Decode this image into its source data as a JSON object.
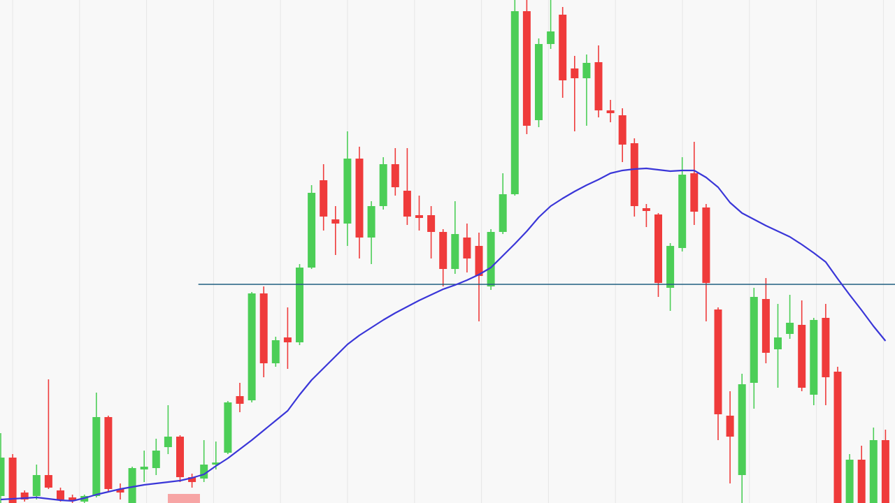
{
  "chart_data": {
    "type": "candlestick",
    "open": [
      10,
      65,
      15,
      10,
      40,
      18,
      8,
      2,
      10,
      123,
      20,
      0,
      48,
      50,
      80,
      95,
      37,
      35,
      55,
      72,
      153,
      147,
      300,
      200,
      237,
      230,
      337,
      462,
      406,
      400,
      493,
      380,
      425,
      485,
      447,
      412,
      412,
      388,
      335,
      380,
      368,
      310,
      388,
      442,
      704,
      548,
      657,
      699,
      622,
      608,
      631,
      562,
      555,
      515,
      422,
      413,
      308,
      365,
      472,
      423,
      277,
      125,
      40,
      172,
      292,
      220,
      242,
      255,
      155,
      265,
      188,
      0,
      62,
      0,
      90
    ],
    "high": [
      100,
      70,
      18,
      55,
      177,
      22,
      12,
      12,
      158,
      125,
      28,
      52,
      75,
      92,
      140,
      97,
      42,
      90,
      88,
      146,
      172,
      302,
      310,
      238,
      280,
      342,
      455,
      485,
      425,
      532,
      510,
      432,
      495,
      508,
      508,
      440,
      425,
      392,
      432,
      400,
      387,
      392,
      472,
      720,
      720,
      665,
      720,
      710,
      640,
      642,
      655,
      577,
      565,
      522,
      428,
      415,
      372,
      495,
      517,
      428,
      280,
      160,
      185,
      308,
      322,
      285,
      298,
      290,
      265,
      285,
      195,
      70,
      82,
      108,
      105
    ],
    "low": [
      0,
      0,
      2,
      5,
      20,
      2,
      0,
      0,
      8,
      15,
      5,
      0,
      30,
      40,
      70,
      30,
      22,
      30,
      48,
      70,
      130,
      144,
      180,
      195,
      192,
      226,
      335,
      390,
      355,
      368,
      350,
      342,
      420,
      440,
      398,
      390,
      350,
      310,
      328,
      330,
      260,
      305,
      385,
      440,
      528,
      538,
      650,
      580,
      532,
      540,
      552,
      545,
      488,
      410,
      395,
      295,
      275,
      360,
      398,
      260,
      90,
      28,
      0,
      135,
      200,
      165,
      235,
      160,
      140,
      140,
      0,
      0,
      0,
      0,
      0
    ],
    "close": [
      65,
      0,
      5,
      40,
      22,
      5,
      4,
      10,
      123,
      20,
      15,
      50,
      52,
      75,
      95,
      37,
      30,
      55,
      58,
      144,
      142,
      300,
      200,
      233,
      230,
      337,
      444,
      410,
      400,
      493,
      380,
      425,
      485,
      452,
      410,
      408,
      388,
      335,
      385,
      350,
      325,
      388,
      442,
      704,
      540,
      657,
      675,
      605,
      608,
      630,
      562,
      558,
      513,
      425,
      418,
      315,
      368,
      470,
      417,
      315,
      127,
      95,
      170,
      295,
      215,
      237,
      258,
      165,
      262,
      180,
      0,
      62,
      0,
      90,
      0
    ],
    "up_color": "#4cce57",
    "down_color": "#ef3b3b",
    "ma": {
      "color": "#3a36d8",
      "values": [
        5,
        6,
        7,
        8,
        6,
        4,
        3,
        7,
        12,
        16,
        20,
        23,
        26,
        28,
        30,
        32,
        36,
        41,
        53,
        64,
        77,
        90,
        104,
        118,
        132,
        155,
        176,
        193,
        210,
        227,
        240,
        251,
        262,
        272,
        281,
        290,
        298,
        306,
        312,
        319,
        327,
        337,
        354,
        371,
        389,
        409,
        425,
        436,
        446,
        455,
        463,
        472,
        476,
        478,
        479,
        477,
        475,
        476,
        476,
        466,
        452,
        430,
        415,
        406,
        397,
        389,
        381,
        370,
        358,
        345,
        321,
        298,
        276,
        253,
        232
      ]
    },
    "level": {
      "value": 313,
      "color": "#1f5f80"
    },
    "ylim": [
      0,
      720
    ],
    "grid": true
  }
}
